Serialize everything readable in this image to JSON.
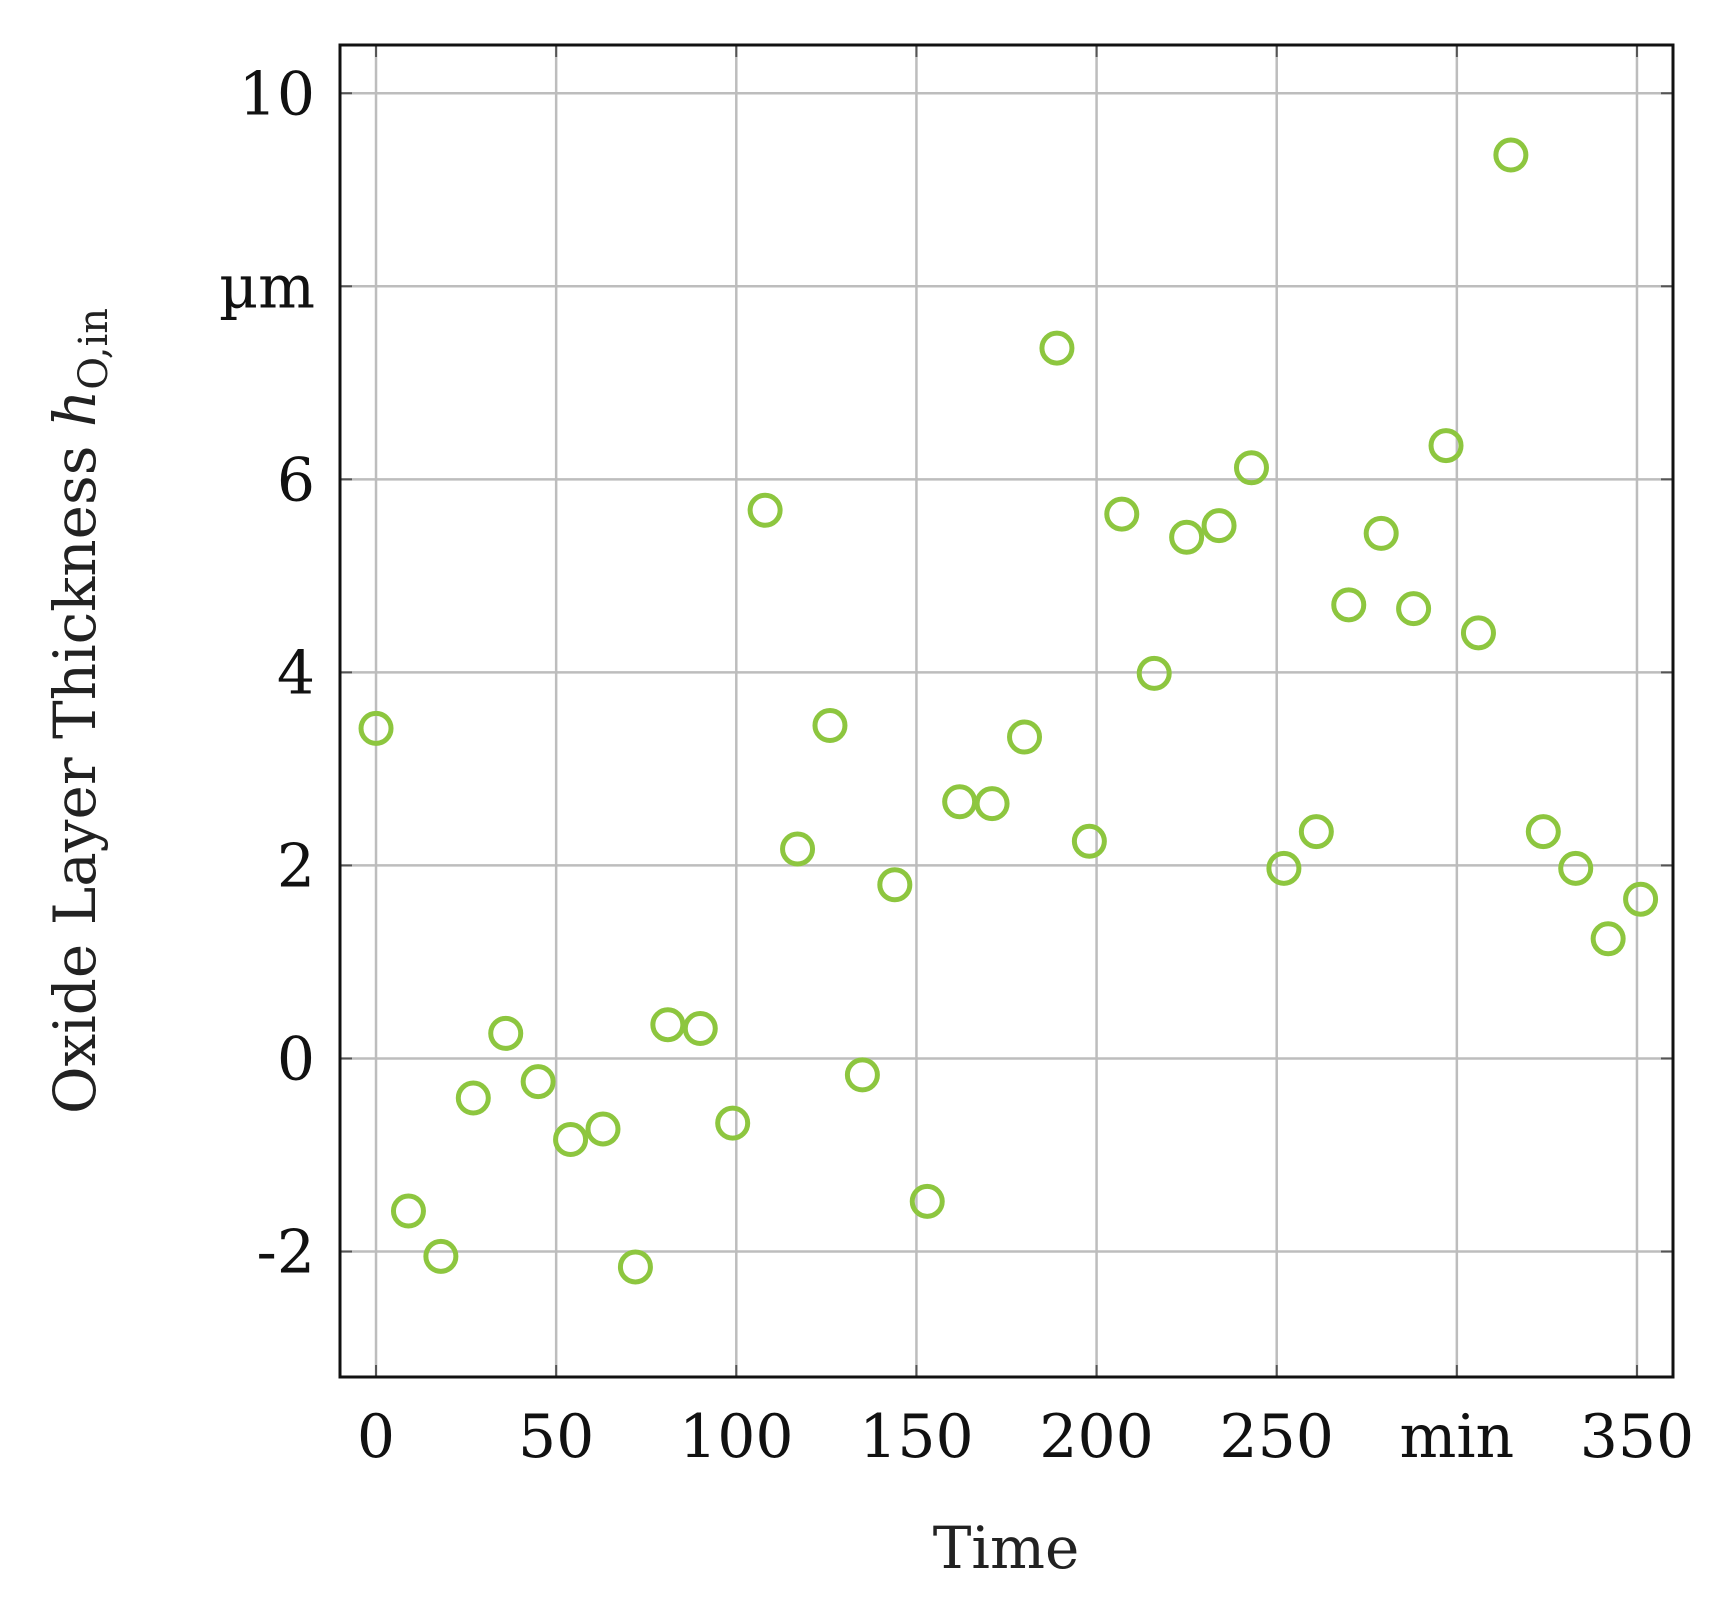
{
  "chart_data": {
    "type": "scatter",
    "title": "",
    "xlabel": "Time",
    "ylabel": "Oxide Layer Thickness",
    "ylabel_symbol": "h",
    "ylabel_subscript": "O,in",
    "x_unit": "min",
    "y_unit": "µm",
    "xlim": [
      -10,
      360
    ],
    "ylim": [
      -3.3,
      10.5
    ],
    "x_tick_labels": [
      "0",
      "50",
      "100",
      "150",
      "200",
      "250",
      "min",
      "350"
    ],
    "x_tick_values": [
      0,
      50,
      100,
      150,
      200,
      250,
      300,
      350
    ],
    "y_tick_labels": [
      "-2",
      "0",
      "2",
      "4",
      "6",
      "µm",
      "10"
    ],
    "y_tick_values": [
      -2,
      0,
      2,
      4,
      6,
      8,
      10
    ],
    "grid": true,
    "marker": "open-circle",
    "marker_color": "#8dc63f",
    "series": [
      {
        "x": [
          0,
          9,
          18,
          27,
          36,
          45,
          54,
          63,
          72,
          81,
          90,
          99,
          108,
          117,
          126,
          135,
          144,
          153,
          162,
          171,
          180,
          189,
          198,
          207,
          216,
          225,
          234,
          243,
          252,
          261,
          270,
          279,
          288,
          297,
          306,
          315,
          324,
          333,
          342,
          351
        ],
        "y": [
          3.42,
          -1.58,
          -2.05,
          -0.41,
          0.26,
          -0.24,
          -0.84,
          -0.73,
          -2.16,
          0.35,
          0.31,
          -0.67,
          5.68,
          2.17,
          3.45,
          -0.17,
          1.8,
          -1.48,
          2.66,
          2.64,
          3.33,
          7.36,
          2.25,
          5.64,
          3.99,
          5.4,
          5.52,
          6.12,
          1.97,
          2.35,
          4.7,
          5.44,
          4.66,
          6.35,
          4.41,
          9.36,
          2.35,
          1.97,
          1.24,
          1.65
        ]
      }
    ]
  }
}
